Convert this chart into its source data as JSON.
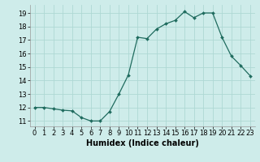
{
  "x": [
    0,
    1,
    2,
    3,
    4,
    5,
    6,
    7,
    8,
    9,
    10,
    11,
    12,
    13,
    14,
    15,
    16,
    17,
    18,
    19,
    20,
    21,
    22,
    23
  ],
  "y": [
    12.0,
    12.0,
    11.9,
    11.8,
    11.75,
    11.25,
    11.0,
    11.0,
    11.7,
    13.0,
    14.4,
    17.2,
    17.1,
    17.8,
    18.2,
    18.45,
    19.1,
    18.65,
    19.0,
    19.0,
    17.2,
    15.8,
    15.1,
    14.35
  ],
  "title": "",
  "xlabel": "Humidex (Indice chaleur)",
  "ylabel": "",
  "ylim": [
    10.6,
    19.6
  ],
  "xlim": [
    -0.5,
    23.5
  ],
  "yticks": [
    11,
    12,
    13,
    14,
    15,
    16,
    17,
    18,
    19
  ],
  "xticks": [
    0,
    1,
    2,
    3,
    4,
    5,
    6,
    7,
    8,
    9,
    10,
    11,
    12,
    13,
    14,
    15,
    16,
    17,
    18,
    19,
    20,
    21,
    22,
    23
  ],
  "line_color": "#1f6b5e",
  "marker_color": "#1f6b5e",
  "bg_color": "#ceecea",
  "grid_color": "#aed8d4",
  "label_fontsize": 7,
  "tick_fontsize": 6
}
